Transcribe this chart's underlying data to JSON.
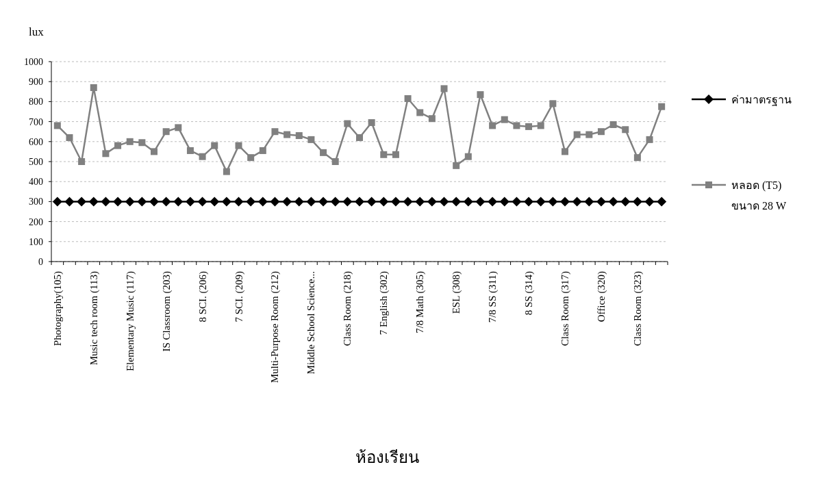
{
  "chart_data": {
    "type": "line",
    "ylabel": "lux",
    "xlabel": "ห้องเรียน",
    "categories": [
      "Photography(105)",
      null,
      null,
      "Music tech room (113)",
      null,
      null,
      "Elementary Music (117)",
      null,
      null,
      "IS Classroom (203)",
      null,
      null,
      "8 SCI. (206)",
      null,
      null,
      "7 SCI. (209)",
      null,
      null,
      "Multi-Purpose Room (212)",
      null,
      null,
      "Middle School Science...",
      null,
      null,
      "Class Room (218)",
      null,
      null,
      "7 English (302)",
      null,
      null,
      "7/8 Math (305)",
      null,
      null,
      "ESL (308)",
      null,
      null,
      "7/8 SS (311)",
      null,
      null,
      "8 SS (314)",
      null,
      null,
      "Class Room (317)",
      null,
      null,
      "Office (320)",
      null,
      null,
      "Class Room (323)",
      null,
      null
    ],
    "series": [
      {
        "name": "ค่ามาตรฐาน",
        "color": "#000000",
        "marker": "diamond",
        "values": [
          300,
          300,
          300,
          300,
          300,
          300,
          300,
          300,
          300,
          300,
          300,
          300,
          300,
          300,
          300,
          300,
          300,
          300,
          300,
          300,
          300,
          300,
          300,
          300,
          300,
          300,
          300,
          300,
          300,
          300,
          300,
          300,
          300,
          300,
          300,
          300,
          300,
          300,
          300,
          300,
          300,
          300,
          300,
          300,
          300,
          300,
          300,
          300,
          300,
          300,
          300
        ]
      },
      {
        "name": "หลอด (T5) ขนาด 28 W",
        "color": "#808080",
        "marker": "square",
        "values": [
          680,
          620,
          500,
          870,
          540,
          580,
          600,
          595,
          550,
          650,
          670,
          555,
          525,
          580,
          450,
          580,
          520,
          555,
          650,
          635,
          630,
          610,
          545,
          500,
          690,
          620,
          695,
          535,
          535,
          815,
          745,
          715,
          865,
          480,
          525,
          835,
          680,
          710,
          680,
          675,
          680,
          790,
          550,
          635,
          635,
          650,
          685,
          660,
          520,
          610,
          775
        ]
      }
    ],
    "ylim": [
      0,
      1000
    ],
    "yticks": [
      0,
      100,
      200,
      300,
      400,
      500,
      600,
      700,
      800,
      900,
      1000
    ],
    "grid": "y",
    "legend": "right"
  }
}
